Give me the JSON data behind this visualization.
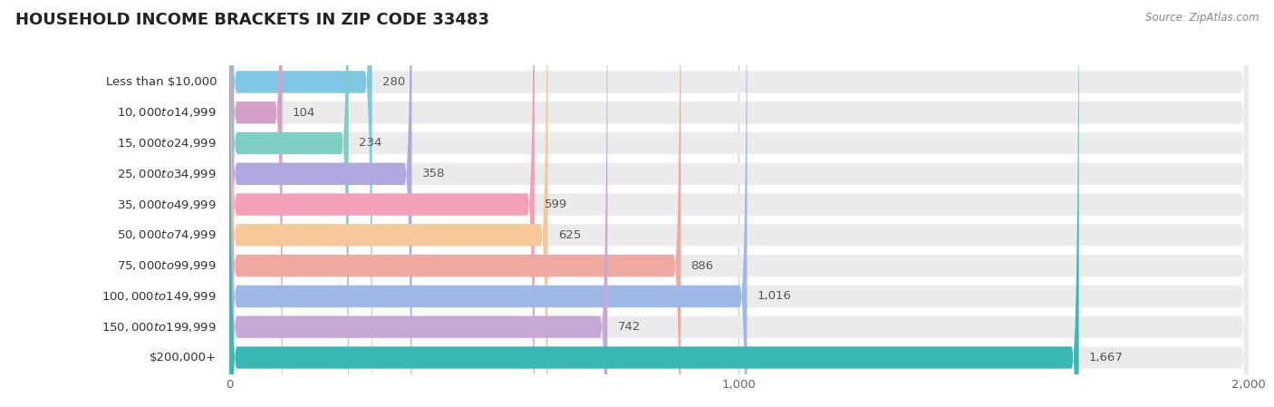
{
  "title": "HOUSEHOLD INCOME BRACKETS IN ZIP CODE 33483",
  "source": "Source: ZipAtlas.com",
  "categories": [
    "Less than $10,000",
    "$10,000 to $14,999",
    "$15,000 to $24,999",
    "$25,000 to $34,999",
    "$35,000 to $49,999",
    "$50,000 to $74,999",
    "$75,000 to $99,999",
    "$100,000 to $149,999",
    "$150,000 to $199,999",
    "$200,000+"
  ],
  "values": [
    280,
    104,
    234,
    358,
    599,
    625,
    886,
    1016,
    742,
    1667
  ],
  "colors": [
    "#7ec8e3",
    "#d4a0c8",
    "#7ecec4",
    "#b0a8e0",
    "#f4a0b8",
    "#f5c89a",
    "#f0a8a0",
    "#a0b8e8",
    "#c8a8d8",
    "#3ab8b8"
  ],
  "xlim": [
    0,
    2000
  ],
  "bar_height": 0.72,
  "background_color": "#ffffff",
  "bar_bg_color": "#ebebeb",
  "title_fontsize": 13,
  "label_fontsize": 9.5,
  "value_fontsize": 9.5,
  "xticks": [
    0,
    1000,
    2000
  ],
  "source_fontsize": 8.5
}
